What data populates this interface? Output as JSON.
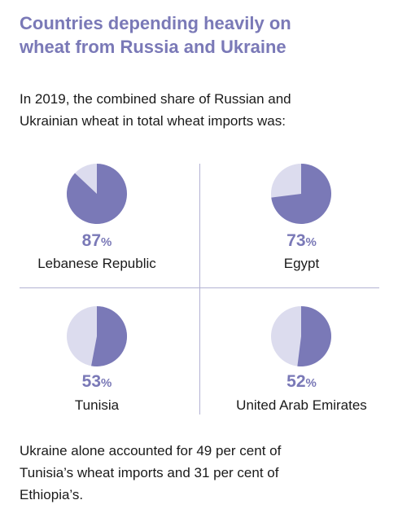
{
  "header": {
    "title_line1": "Countries depending heavily on",
    "title_line2": "wheat from Russia and Ukraine"
  },
  "intro": {
    "line1": "In 2019, the combined share of Russian and",
    "line2": "Ukrainian wheat in total wheat imports was:"
  },
  "colors": {
    "accent": "#7a79b7",
    "remainder": "#dcdcee",
    "divider": "#b3b2d3"
  },
  "chart_data": {
    "type": "pie",
    "series": [
      {
        "country": "Lebanese Republic",
        "value": 87,
        "unit": "%"
      },
      {
        "country": "Egypt",
        "value": 73,
        "unit": "%"
      },
      {
        "country": "Tunisia",
        "value": 53,
        "unit": "%"
      },
      {
        "country": "United Arab Emirates",
        "value": 52,
        "unit": "%"
      }
    ]
  },
  "footer": {
    "line1": "Ukraine alone accounted for 49 per cent of",
    "line2": "Tunisia’s wheat imports and 31 per cent of",
    "line3": "Ethiopia’s."
  }
}
